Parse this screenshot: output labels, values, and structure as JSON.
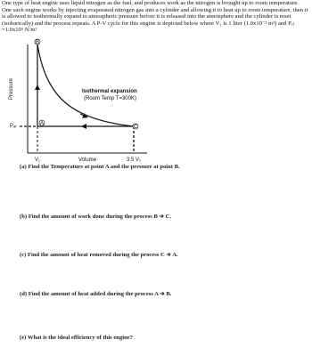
{
  "intro": "One type of heat engine uses liquid nitrogen as the fuel, and produces work as the nitrogen is brought up to room temperature. One such engine works by injecting evaporated nitrogen gas into a cylinder and allowing it to heat up to room temperature, then it is allowed to isothermally expand to atmospheric pressure before it is released into the atmosphere and the cylinder is reset (isobarically) and the process repeats. A P-V cycle for this engine is depicted below where V₁ is 1 liter (1.0x10⁻³ m³) and Pₐₜ =1.0x10⁵ N/m²",
  "diagram": {
    "y_label": "Pressure",
    "x_label": "Volume",
    "p_label": "Pₐₜ",
    "v1_label": "V₁",
    "v2_label": "3.5 V₁",
    "points": {
      "a": "A",
      "b": "B",
      "c": "C"
    },
    "process_label": "Isothermal expansion",
    "process_sub": "(Room Temp T=300K)"
  },
  "questions": [
    "(a)  Find the Temperature at point A and the pressure at point B.",
    "(b)  Find the amount of work done during the process B ➔ C.",
    "(c)  Find the amount of heat removed during the process C ➔ A.",
    "(d)  Find the amount of heat added during the process A ➔ B.",
    "(e)  What is the ideal efficiency of this engine?"
  ]
}
